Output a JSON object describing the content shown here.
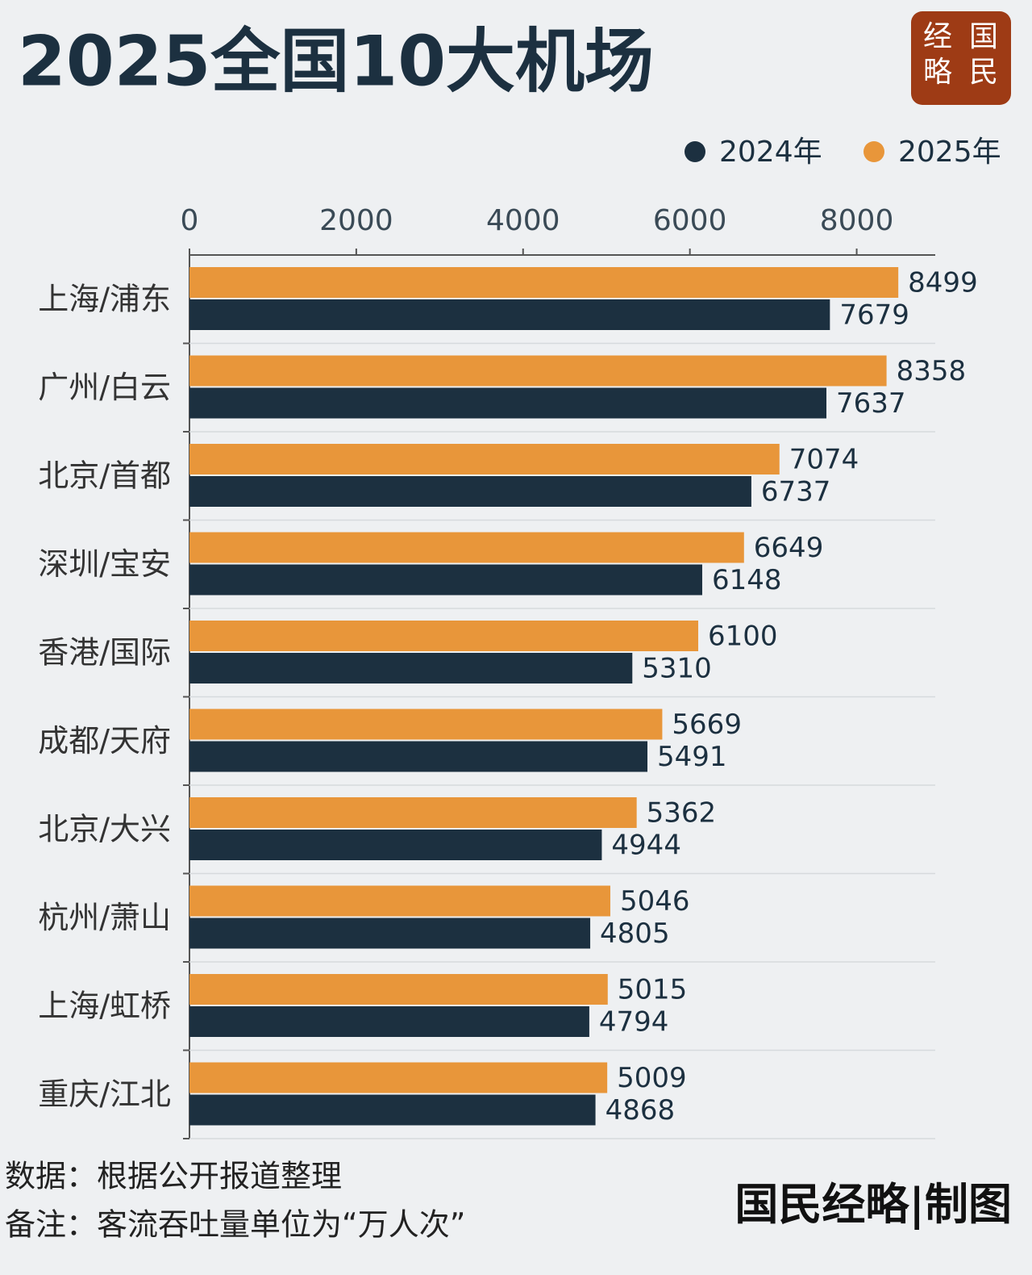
{
  "chart_data": {
    "type": "bar",
    "orientation": "horizontal",
    "title": "2025全国10大机场",
    "logo": [
      "经",
      "国",
      "略",
      "民"
    ],
    "categories": [
      "上海/浦东",
      "广州/白云",
      "北京/首都",
      "深圳/宝安",
      "香港/国际",
      "成都/天府",
      "北京/大兴",
      "杭州/萧山",
      "上海/虹桥",
      "重庆/江北"
    ],
    "series": [
      {
        "name": "2024年",
        "color": "#1c3040",
        "values": [
          7679,
          7637,
          6737,
          6148,
          5310,
          5491,
          4944,
          4805,
          4794,
          4868
        ]
      },
      {
        "name": "2025年",
        "color": "#e8963a",
        "values": [
          8499,
          8358,
          7074,
          6649,
          6100,
          5669,
          5362,
          5046,
          5015,
          5009
        ]
      }
    ],
    "xlim": [
      0,
      9000
    ],
    "xticks": [
      0,
      2000,
      4000,
      6000,
      8000
    ],
    "grid": false,
    "notes": [
      "数据：根据公开报道整理",
      "备注：客流吞吐量单位为“万人次”"
    ],
    "signature": "国民经略|制图"
  }
}
